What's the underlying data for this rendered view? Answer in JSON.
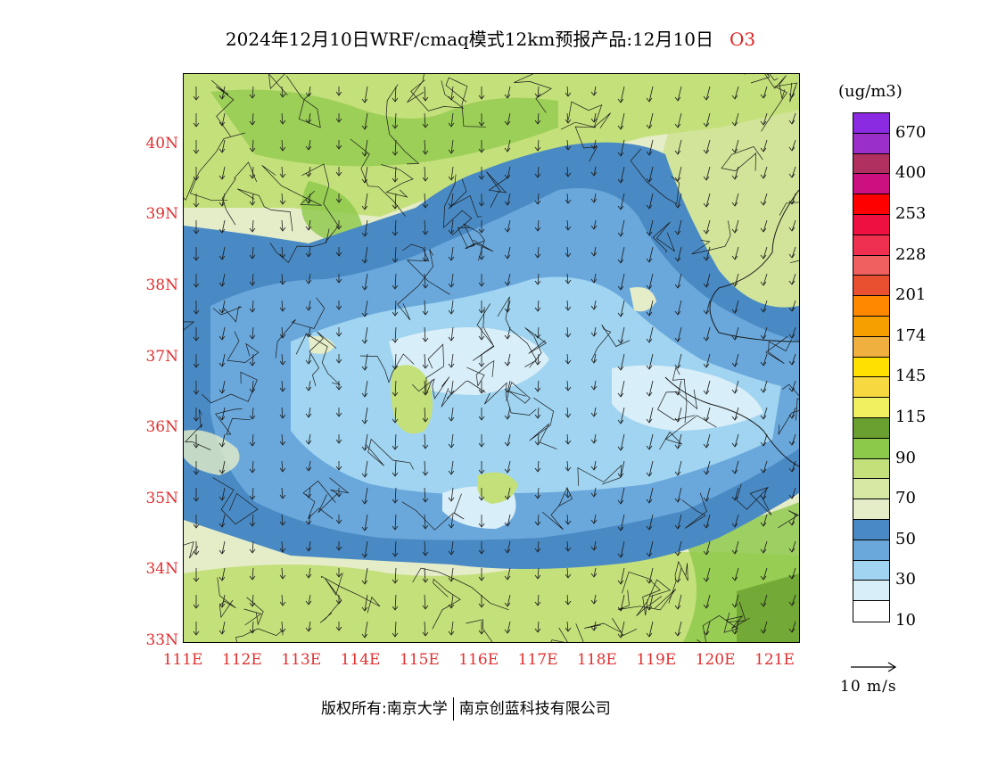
{
  "title": {
    "main": "2024年12月10日WRF/cmaq模式12km预报产品:12月10日",
    "species": "O3"
  },
  "map": {
    "lat_labels": [
      "40N",
      "39N",
      "38N",
      "37N",
      "36N",
      "35N",
      "34N",
      "33N"
    ],
    "lon_labels": [
      "111E",
      "112E",
      "113E",
      "114E",
      "115E",
      "116E",
      "117E",
      "118E",
      "119E",
      "120E",
      "121E"
    ],
    "lon_range": [
      111,
      121.4
    ],
    "lat_range": [
      33,
      41
    ]
  },
  "legend": {
    "unit": "(ug/m3)",
    "colors": [
      "#8a2be2",
      "#9b30c8",
      "#b03060",
      "#cc1080",
      "#ff0000",
      "#ee1040",
      "#f03050",
      "#f06060",
      "#e85030",
      "#ff8800",
      "#f5a000",
      "#f0b040",
      "#ffe000",
      "#f8d840",
      "#f0f060",
      "#6aa030",
      "#8cc84a",
      "#c4e07a",
      "#d6e8a4",
      "#e4ecc8",
      "#4a8ac4",
      "#6aa8dc",
      "#a0d4f0",
      "#d8eef8",
      "#ffffff"
    ],
    "labels": [
      "670",
      "400",
      "253",
      "228",
      "201",
      "174",
      "145",
      "115",
      "90",
      "70",
      "50",
      "30",
      "10"
    ]
  },
  "wind": {
    "scale_label": "10 m/s"
  },
  "footer": {
    "left": "版权所有:南京大学",
    "right": "南京创蓝科技有限公司"
  }
}
